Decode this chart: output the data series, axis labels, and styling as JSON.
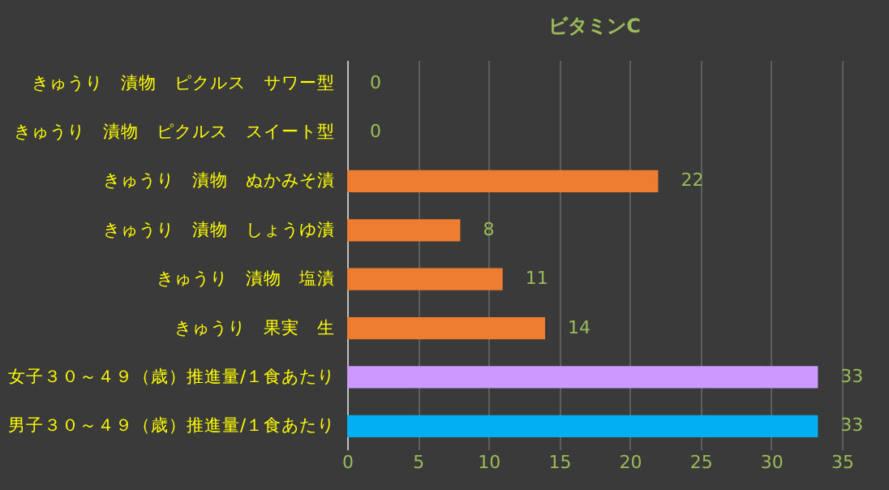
{
  "chart_data": {
    "type": "bar",
    "orientation": "horizontal",
    "title": "ビタミンC",
    "categories": [
      "きゅうり　漬物　ピクルス　サワー型",
      "きゅうり　漬物　ピクルス　スイート型",
      "きゅうり　漬物　ぬかみそ漬",
      "きゅうり　漬物　しょうゆ漬",
      "きゅうり　漬物　塩漬",
      "きゅうり　果実　生",
      "女子３０～４９（歳）推進量/１食あたり",
      "男子３０～４９（歳）推進量/１食あたり"
    ],
    "values": [
      0,
      0,
      22,
      8,
      11,
      14,
      33.3,
      33.3
    ],
    "value_labels": [
      "0",
      "0",
      "22",
      "8",
      "11",
      "14",
      "33",
      "33"
    ],
    "colors": [
      "#ed7d31",
      "#ed7d31",
      "#ed7d31",
      "#ed7d31",
      "#ed7d31",
      "#ed7d31",
      "#cc99ff",
      "#00b0f0"
    ],
    "xlim": [
      0,
      35
    ],
    "xticks": [
      0,
      5,
      10,
      15,
      20,
      25,
      30,
      35
    ],
    "grid": "x"
  }
}
